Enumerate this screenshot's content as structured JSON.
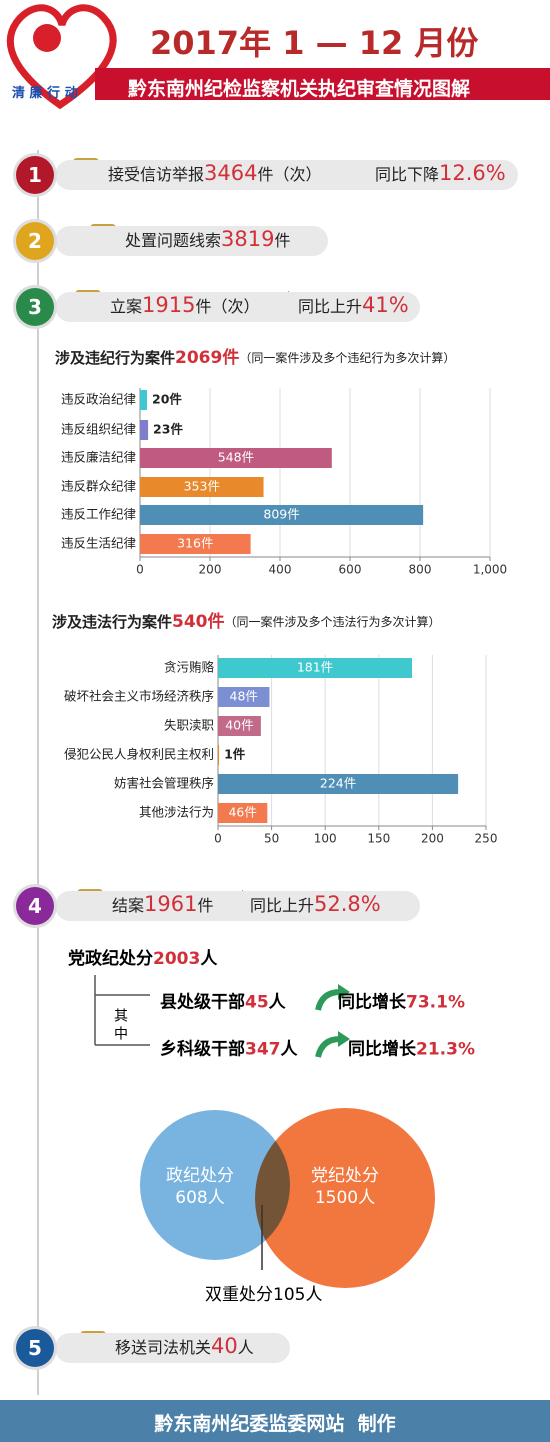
{
  "header": {
    "logo": "清 廉 行 动",
    "title": "2017年 1 — 12 月份",
    "subtitle": "黔东南州纪检监察机关执纪审查情况图解"
  },
  "sections": [
    {
      "number": "1",
      "parts": [
        "接受信访举报",
        "3464",
        "件（次）"
      ],
      "trend": "同比下降",
      "trend_value": "12.6%"
    },
    {
      "number": "2",
      "parts": [
        "处置问题线索",
        "3819",
        "件"
      ]
    },
    {
      "number": "3",
      "parts": [
        "立案",
        "1915",
        "件（次）"
      ],
      "trend": "同比上升",
      "trend_value": "41%"
    },
    {
      "number": "4",
      "parts": [
        "结案",
        "1961",
        "件"
      ],
      "trend": "同比上升",
      "trend_value": "52.8%"
    },
    {
      "number": "5",
      "parts": [
        "移送司法机关",
        "40",
        "人"
      ]
    }
  ],
  "chart_data": [
    {
      "type": "hbar",
      "title": "涉及违纪行为案件",
      "title_value": "2069件",
      "note": "（同一案件涉及多个违纪行为多次计算）",
      "categories": [
        "违反政治纪律",
        "违反组织纪律",
        "违反廉洁纪律",
        "违反群众纪律",
        "违反工作纪律",
        "违反生活纪律"
      ],
      "values": [
        20,
        23,
        548,
        353,
        809,
        316
      ],
      "value_labels": [
        "20件",
        "23件",
        "548件",
        "353件",
        "809件",
        "316件"
      ],
      "colors": [
        "#3fc9cf",
        "#7f7dcc",
        "#c05a80",
        "#e8892c",
        "#4f8fb6",
        "#f27a4e"
      ],
      "xlim": [
        0,
        1000
      ],
      "xticks": [
        0,
        200,
        400,
        600,
        800,
        {
          "value": 1000,
          "label": "1,000"
        }
      ],
      "grid": true
    },
    {
      "type": "hbar",
      "title": "涉及违法行为案件",
      "title_value": "540件",
      "note": "（同一案件涉及多个违法行为多次计算）",
      "categories": [
        "贪污贿赂",
        "破坏社会主义市场经济秩序",
        "失职渎职",
        "侵犯公民人身权利民主权利",
        "妨害社会管理秩序",
        "其他涉法行为"
      ],
      "values": [
        181,
        48,
        40,
        1,
        224,
        46
      ],
      "value_labels": [
        "181件",
        "48件",
        "40件",
        "1件",
        "224件",
        "46件"
      ],
      "colors": [
        "#3fc9cf",
        "#7b8fd2",
        "#c26a8a",
        "#e8892c",
        "#4f8fb6",
        "#f27a4e"
      ],
      "xlim": [
        0,
        250
      ],
      "xticks": [
        0,
        50,
        100,
        150,
        200,
        250
      ],
      "grid": true
    }
  ],
  "sanctions": {
    "label": "党政纪处分",
    "value": "2003",
    "unit": "人",
    "among": "其中",
    "rows": [
      {
        "label": "县处级干部",
        "value": "45",
        "unit": "人",
        "trend": "同比增长",
        "trend_value": "73.1%"
      },
      {
        "label": "乡科级干部",
        "value": "347",
        "unit": "人",
        "trend": "同比增长",
        "trend_value": "21.3%"
      }
    ]
  },
  "venn": {
    "left_label": "政纪处分",
    "left_value": "608人",
    "right_label": "党纪处分",
    "right_value": "1500人",
    "overlap": "双重处分105人"
  },
  "footer": "黔东南州纪委监委网站  制作"
}
